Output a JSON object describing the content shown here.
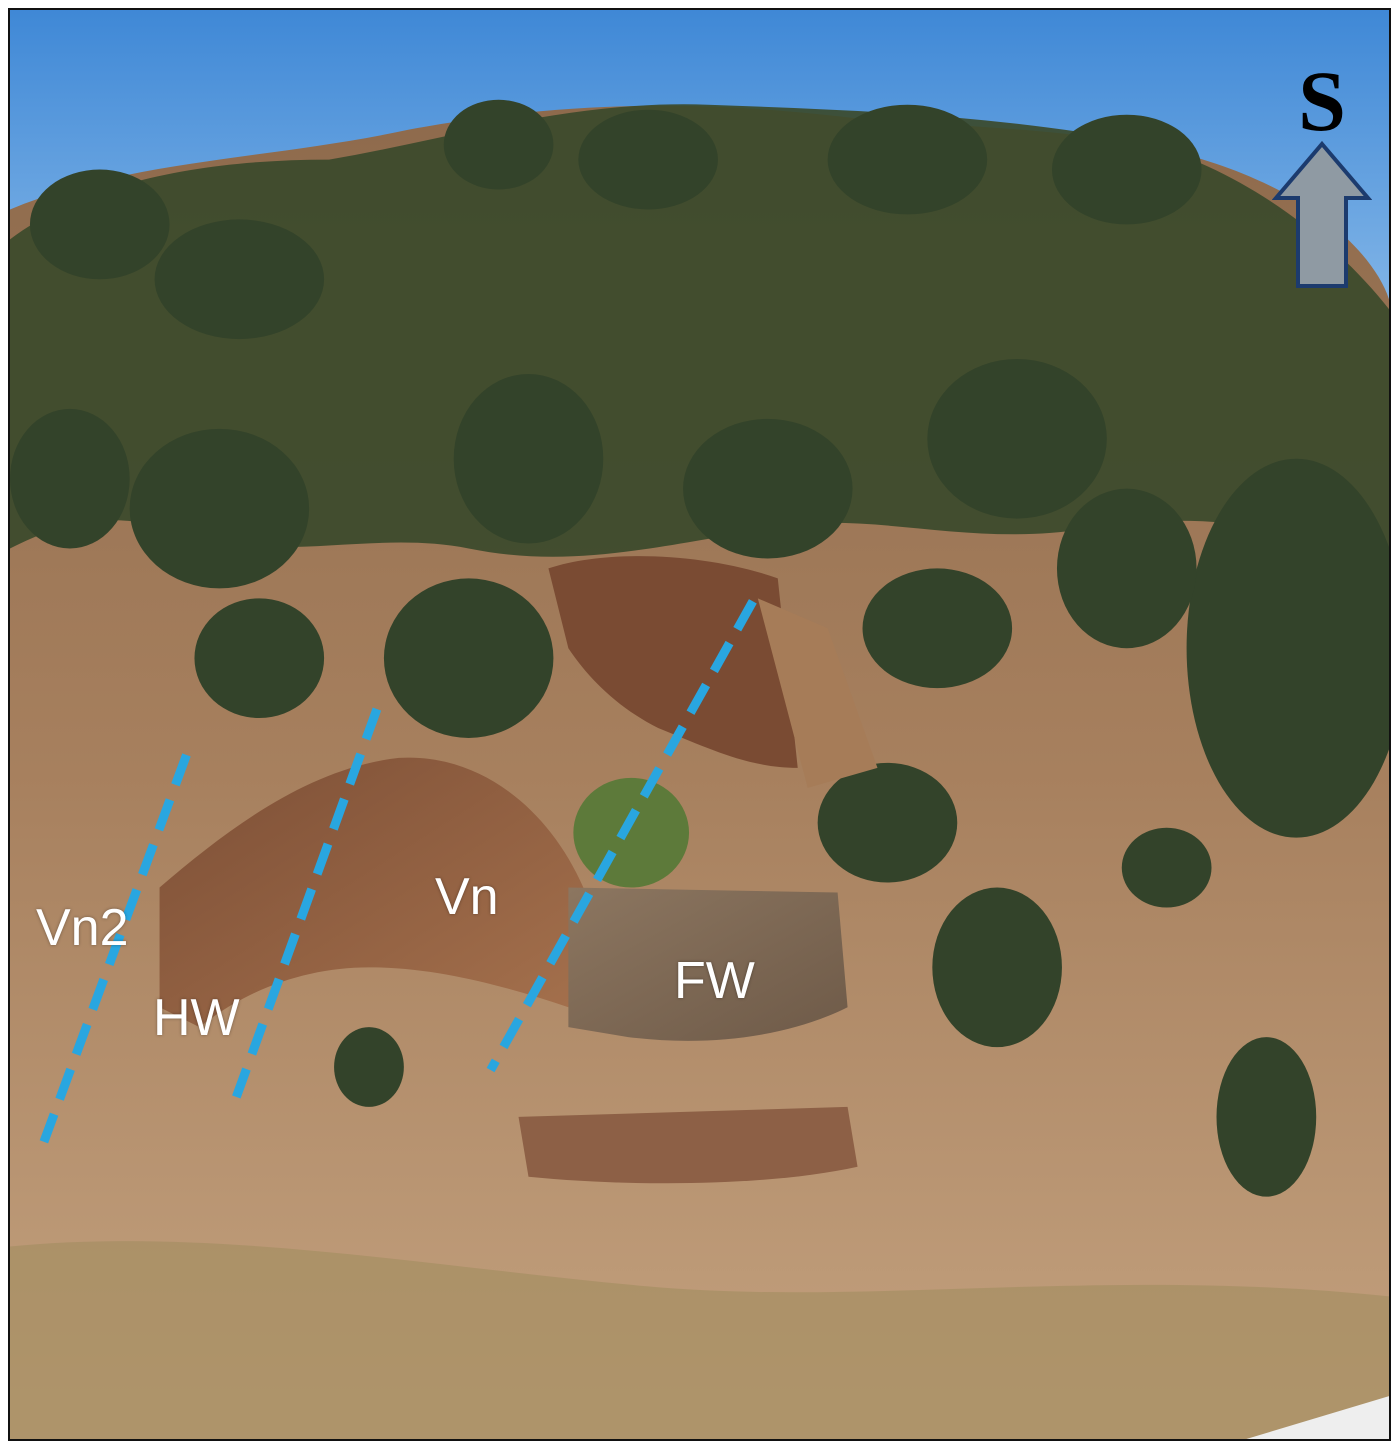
{
  "photo": {
    "description_icon": "hillside-outcrop-photo",
    "sky_color": "#4f93d8",
    "vegetation_color": "#3c4a2c",
    "rock_color": "#9a6a4a",
    "soil_color": "#b48a66",
    "vein_line_color": "#29a6e0"
  },
  "labels": {
    "vn2": "Vn2",
    "hw": "HW",
    "vn": "Vn",
    "fw": "FW"
  },
  "direction": {
    "letter": "S",
    "icon": "up-arrow-icon",
    "arrow_fill": "#8f9aa3",
    "arrow_stroke": "#1c3b6e"
  }
}
